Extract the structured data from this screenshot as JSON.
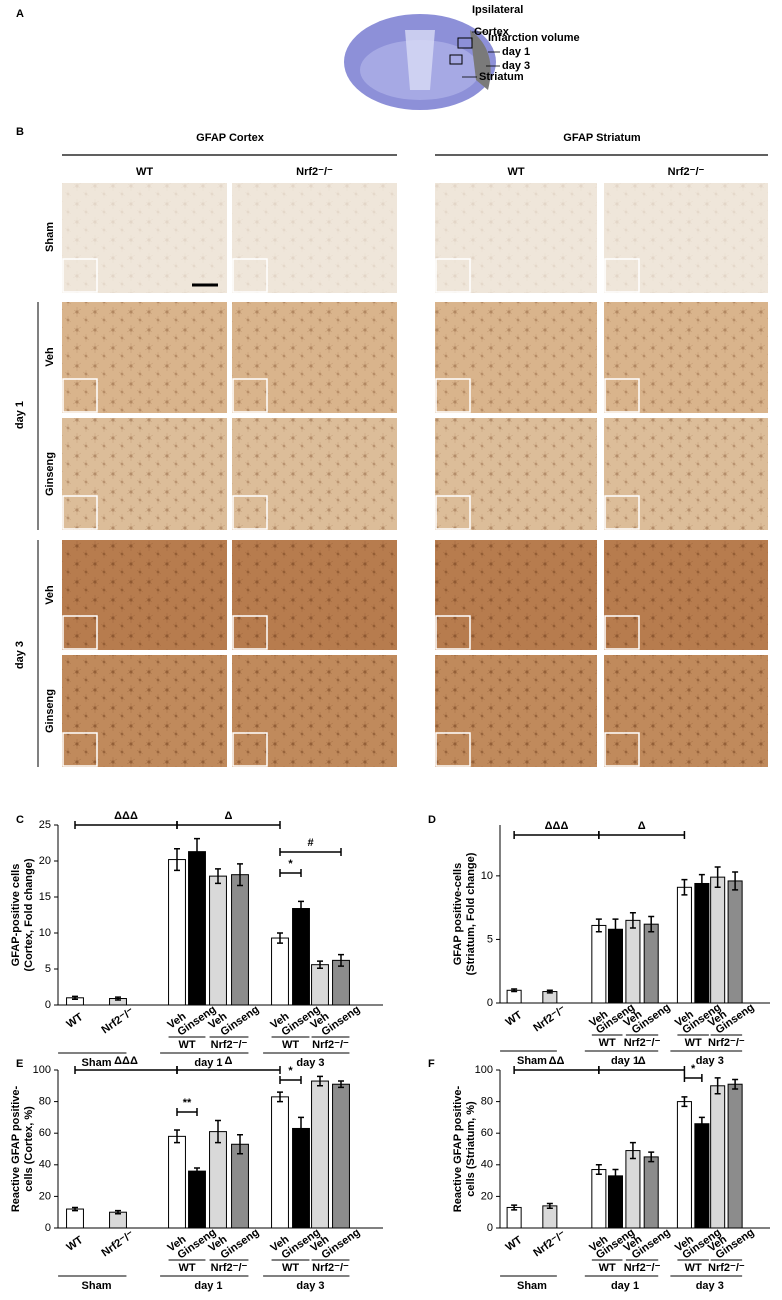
{
  "panel_labels": [
    "A",
    "B",
    "C",
    "D",
    "E",
    "F"
  ],
  "panel_a": {
    "labels": [
      "Ipsilateral",
      "Cortex",
      "Infarction volume",
      "day 1",
      "day 3",
      "Striatum"
    ]
  },
  "panel_b": {
    "regions": [
      "GFAP  Cortex",
      "GFAP  Striatum"
    ],
    "genotypes": [
      "WT",
      "Nrf2⁻/⁻"
    ],
    "rows": [
      "Sham",
      "Veh",
      "Ginseng",
      "Veh",
      "Ginseng"
    ],
    "days": [
      "day 1",
      "day 3"
    ]
  },
  "chart_data": [
    {
      "type": "bar",
      "ylabel": [
        "GFAP-positive cells",
        "(Cortex, Fold change)"
      ],
      "categories": [
        "WT",
        "Nrf2⁻/⁻",
        "Veh",
        "Ginseng",
        "Veh",
        "Ginseng",
        "Veh",
        "Ginseng",
        "Veh",
        "Ginseng"
      ],
      "genotype_labels": [
        "WT",
        "Nrf2⁻/⁻",
        "WT",
        "Nrf2⁻/⁻"
      ],
      "group_labels": [
        "Sham",
        "day 1",
        "day 3"
      ],
      "values": [
        1.0,
        0.9,
        20.2,
        21.3,
        17.9,
        18.1,
        9.3,
        13.4,
        5.6,
        6.2
      ],
      "errors": [
        0.2,
        0.2,
        1.5,
        1.8,
        1.0,
        1.5,
        0.7,
        1.0,
        0.5,
        0.8
      ],
      "colors": [
        "#ffffff",
        "#d9d9d9",
        "#ffffff",
        "#000000",
        "#d9d9d9",
        "#8c8c8c",
        "#ffffff",
        "#000000",
        "#d9d9d9",
        "#8c8c8c"
      ],
      "ylim": [
        0,
        25
      ],
      "yticks": [
        0,
        5,
        10,
        15,
        20,
        25
      ],
      "annotations": [
        "ΔΔΔ",
        "Δ",
        "#",
        "*"
      ]
    },
    {
      "type": "bar",
      "ylabel": [
        "GFAP positive-cells",
        "(Striatum, Fold change)"
      ],
      "categories": [
        "WT",
        "Nrf2⁻/⁻",
        "Veh",
        "Ginseng",
        "Veh",
        "Ginseng",
        "Veh",
        "Ginseng",
        "Veh",
        "Ginseng"
      ],
      "genotype_labels": [
        "WT",
        "Nrf2⁻/⁻",
        "WT",
        "Nrf2⁻/⁻"
      ],
      "group_labels": [
        "Sham",
        "day 1",
        "day 3"
      ],
      "values": [
        1.0,
        0.9,
        6.1,
        5.8,
        6.5,
        6.2,
        9.1,
        9.4,
        9.9,
        9.6
      ],
      "errors": [
        0.1,
        0.1,
        0.5,
        0.8,
        0.6,
        0.6,
        0.6,
        0.7,
        0.8,
        0.7
      ],
      "colors": [
        "#ffffff",
        "#d9d9d9",
        "#ffffff",
        "#000000",
        "#d9d9d9",
        "#8c8c8c",
        "#ffffff",
        "#000000",
        "#d9d9d9",
        "#8c8c8c"
      ],
      "ylim": [
        0,
        14
      ],
      "yticks": [
        0,
        5,
        10
      ],
      "annotations": [
        "ΔΔΔ",
        "Δ"
      ]
    },
    {
      "type": "bar",
      "ylabel": [
        "Reactive GFAP positive-",
        "cells (Cortex, %)"
      ],
      "categories": [
        "WT",
        "Nrf2⁻/⁻",
        "Veh",
        "Ginseng",
        "Veh",
        "Ginseng",
        "Veh",
        "Ginseng",
        "Veh",
        "Ginseng"
      ],
      "genotype_labels": [
        "WT",
        "Nrf2⁻/⁻",
        "WT",
        "Nrf2⁻/⁻"
      ],
      "group_labels": [
        "Sham",
        "day 1",
        "day 3"
      ],
      "values": [
        12,
        10,
        58,
        36,
        61,
        53,
        83,
        63,
        93,
        91
      ],
      "errors": [
        1,
        1,
        4,
        2,
        7,
        6,
        3,
        7,
        3,
        2
      ],
      "colors": [
        "#ffffff",
        "#d9d9d9",
        "#ffffff",
        "#000000",
        "#d9d9d9",
        "#8c8c8c",
        "#ffffff",
        "#000000",
        "#d9d9d9",
        "#8c8c8c"
      ],
      "ylim": [
        0,
        100
      ],
      "yticks": [
        0,
        20,
        40,
        60,
        80,
        100
      ],
      "annotations": [
        "ΔΔΔ",
        "Δ",
        "**",
        "*"
      ]
    },
    {
      "type": "bar",
      "ylabel": [
        "Reactive GFAP positive-",
        "cells (Striatum, %)"
      ],
      "categories": [
        "WT",
        "Nrf2⁻/⁻",
        "Veh",
        "Ginseng",
        "Veh",
        "Ginseng",
        "Veh",
        "Ginseng",
        "Veh",
        "Ginseng"
      ],
      "genotype_labels": [
        "WT",
        "Nrf2⁻/⁻",
        "WT",
        "Nrf2⁻/⁻"
      ],
      "group_labels": [
        "Sham",
        "day 1",
        "day 3"
      ],
      "values": [
        13,
        14,
        37,
        33,
        49,
        45,
        80,
        66,
        90,
        91
      ],
      "errors": [
        1.5,
        1.5,
        3,
        4,
        5,
        3,
        3,
        4,
        5,
        3
      ],
      "colors": [
        "#ffffff",
        "#d9d9d9",
        "#ffffff",
        "#000000",
        "#d9d9d9",
        "#8c8c8c",
        "#ffffff",
        "#000000",
        "#d9d9d9",
        "#8c8c8c"
      ],
      "ylim": [
        0,
        100
      ],
      "yticks": [
        0,
        20,
        40,
        60,
        80,
        100
      ],
      "annotations": [
        "ΔΔ",
        "Δ",
        "*"
      ]
    }
  ]
}
